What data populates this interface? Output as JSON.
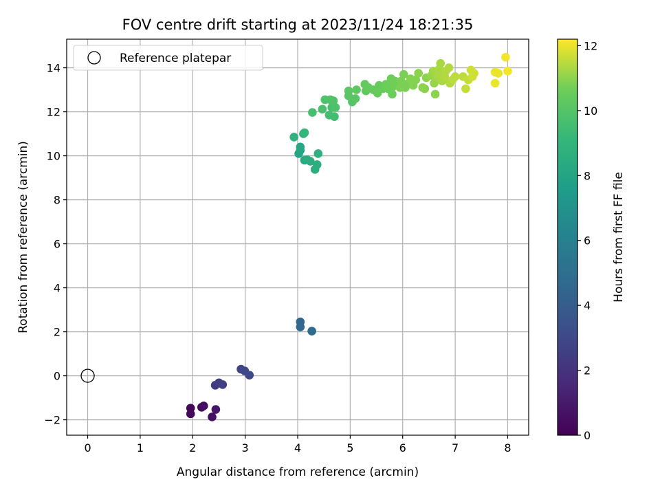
{
  "chart_data": {
    "type": "scatter",
    "title": "FOV centre drift starting at 2023/11/24 18:21:35",
    "xlabel": "Angular distance from reference (arcmin)",
    "ylabel": "Rotation from reference (arcmin)",
    "colorbar_label": "Hours from first FF file",
    "xlim": [
      -0.4,
      8.4
    ],
    "ylim": [
      -2.7,
      15.3
    ],
    "xticks": [
      0,
      1,
      2,
      3,
      4,
      5,
      6,
      7,
      8
    ],
    "yticks": [
      -2,
      0,
      2,
      4,
      6,
      8,
      10,
      12,
      14
    ],
    "colorbar_range": [
      0,
      12.2
    ],
    "colorbar_ticks": [
      0,
      2,
      4,
      6,
      8,
      10,
      12
    ],
    "colormap": "viridis",
    "grid": true,
    "legend": {
      "placement": "top-left",
      "entries": [
        {
          "label": "Reference platepar",
          "marker": "open-circle"
        }
      ]
    },
    "reference": {
      "x": 0,
      "y": 0
    },
    "points": [
      {
        "x": 1.96,
        "y": -1.47,
        "c": 0.2
      },
      {
        "x": 1.96,
        "y": -1.73,
        "c": 0.3
      },
      {
        "x": 2.17,
        "y": -1.43,
        "c": 0.4
      },
      {
        "x": 2.21,
        "y": -1.37,
        "c": 0.5
      },
      {
        "x": 2.37,
        "y": -1.87,
        "c": 0.6
      },
      {
        "x": 2.44,
        "y": -1.53,
        "c": 0.8
      },
      {
        "x": 2.43,
        "y": -0.43,
        "c": 2.3
      },
      {
        "x": 2.5,
        "y": -0.32,
        "c": 2.4
      },
      {
        "x": 2.57,
        "y": -0.4,
        "c": 2.5
      },
      {
        "x": 2.92,
        "y": 0.3,
        "c": 2.8
      },
      {
        "x": 2.99,
        "y": 0.22,
        "c": 2.9
      },
      {
        "x": 3.08,
        "y": 0.03,
        "c": 3.0
      },
      {
        "x": 4.05,
        "y": 2.45,
        "c": 4.6
      },
      {
        "x": 4.05,
        "y": 2.22,
        "c": 4.7
      },
      {
        "x": 4.27,
        "y": 2.03,
        "c": 4.8
      },
      {
        "x": 3.93,
        "y": 10.85,
        "c": 8.8
      },
      {
        "x": 4.02,
        "y": 10.1,
        "c": 8.0
      },
      {
        "x": 4.05,
        "y": 10.25,
        "c": 8.1
      },
      {
        "x": 4.05,
        "y": 10.4,
        "c": 8.2
      },
      {
        "x": 4.11,
        "y": 11.0,
        "c": 8.9
      },
      {
        "x": 4.13,
        "y": 11.05,
        "c": 9.0
      },
      {
        "x": 4.13,
        "y": 9.8,
        "c": 8.3
      },
      {
        "x": 4.18,
        "y": 9.82,
        "c": 8.4
      },
      {
        "x": 4.24,
        "y": 9.75,
        "c": 8.5
      },
      {
        "x": 4.33,
        "y": 9.38,
        "c": 8.6
      },
      {
        "x": 4.37,
        "y": 9.6,
        "c": 8.6
      },
      {
        "x": 4.39,
        "y": 10.1,
        "c": 8.7
      },
      {
        "x": 4.28,
        "y": 11.97,
        "c": 9.6
      },
      {
        "x": 4.47,
        "y": 12.12,
        "c": 9.7
      },
      {
        "x": 4.52,
        "y": 12.55,
        "c": 9.8
      },
      {
        "x": 4.6,
        "y": 11.85,
        "c": 9.6
      },
      {
        "x": 4.62,
        "y": 12.55,
        "c": 9.9
      },
      {
        "x": 4.65,
        "y": 12.2,
        "c": 9.7
      },
      {
        "x": 4.68,
        "y": 12.5,
        "c": 9.9
      },
      {
        "x": 4.7,
        "y": 11.78,
        "c": 9.5
      },
      {
        "x": 4.72,
        "y": 12.2,
        "c": 9.8
      },
      {
        "x": 4.97,
        "y": 12.95,
        "c": 10.2
      },
      {
        "x": 4.97,
        "y": 12.72,
        "c": 10.1
      },
      {
        "x": 5.04,
        "y": 12.45,
        "c": 10.0
      },
      {
        "x": 5.1,
        "y": 12.6,
        "c": 10.1
      },
      {
        "x": 5.12,
        "y": 13.0,
        "c": 10.3
      },
      {
        "x": 5.28,
        "y": 13.25,
        "c": 10.4
      },
      {
        "x": 5.3,
        "y": 12.95,
        "c": 10.3
      },
      {
        "x": 5.35,
        "y": 13.1,
        "c": 10.4
      },
      {
        "x": 5.44,
        "y": 13.0,
        "c": 10.4
      },
      {
        "x": 5.52,
        "y": 12.85,
        "c": 10.5
      },
      {
        "x": 5.55,
        "y": 13.2,
        "c": 10.5
      },
      {
        "x": 5.62,
        "y": 13.05,
        "c": 10.5
      },
      {
        "x": 5.68,
        "y": 13.25,
        "c": 10.6
      },
      {
        "x": 5.72,
        "y": 13.05,
        "c": 10.6
      },
      {
        "x": 5.76,
        "y": 13.3,
        "c": 10.6
      },
      {
        "x": 5.78,
        "y": 13.5,
        "c": 10.6
      },
      {
        "x": 5.8,
        "y": 12.8,
        "c": 10.6
      },
      {
        "x": 5.82,
        "y": 13.15,
        "c": 10.7
      },
      {
        "x": 5.85,
        "y": 13.4,
        "c": 10.7
      },
      {
        "x": 5.9,
        "y": 13.2,
        "c": 10.7
      },
      {
        "x": 5.95,
        "y": 13.1,
        "c": 10.8
      },
      {
        "x": 5.97,
        "y": 13.4,
        "c": 10.8
      },
      {
        "x": 6.02,
        "y": 13.7,
        "c": 10.8
      },
      {
        "x": 6.05,
        "y": 13.1,
        "c": 10.8
      },
      {
        "x": 6.08,
        "y": 13.25,
        "c": 10.8
      },
      {
        "x": 6.15,
        "y": 13.5,
        "c": 10.9
      },
      {
        "x": 6.2,
        "y": 13.2,
        "c": 10.9
      },
      {
        "x": 6.25,
        "y": 13.45,
        "c": 10.9
      },
      {
        "x": 6.3,
        "y": 13.75,
        "c": 11.0
      },
      {
        "x": 6.38,
        "y": 13.1,
        "c": 11.0
      },
      {
        "x": 6.42,
        "y": 13.05,
        "c": 11.0
      },
      {
        "x": 6.45,
        "y": 13.55,
        "c": 11.0
      },
      {
        "x": 6.55,
        "y": 13.65,
        "c": 11.1
      },
      {
        "x": 6.58,
        "y": 13.85,
        "c": 11.2
      },
      {
        "x": 6.6,
        "y": 13.3,
        "c": 11.1
      },
      {
        "x": 6.62,
        "y": 12.8,
        "c": 11.0
      },
      {
        "x": 6.65,
        "y": 13.55,
        "c": 11.2
      },
      {
        "x": 6.68,
        "y": 13.7,
        "c": 11.3
      },
      {
        "x": 6.7,
        "y": 13.95,
        "c": 11.3
      },
      {
        "x": 6.72,
        "y": 14.2,
        "c": 11.3
      },
      {
        "x": 6.75,
        "y": 13.4,
        "c": 11.3
      },
      {
        "x": 6.8,
        "y": 13.6,
        "c": 11.4
      },
      {
        "x": 6.82,
        "y": 13.85,
        "c": 11.4
      },
      {
        "x": 6.88,
        "y": 14.0,
        "c": 11.4
      },
      {
        "x": 6.9,
        "y": 13.3,
        "c": 11.4
      },
      {
        "x": 6.95,
        "y": 13.45,
        "c": 11.5
      },
      {
        "x": 7.0,
        "y": 13.6,
        "c": 11.5
      },
      {
        "x": 7.15,
        "y": 13.6,
        "c": 11.5
      },
      {
        "x": 7.2,
        "y": 13.05,
        "c": 11.6
      },
      {
        "x": 7.25,
        "y": 13.45,
        "c": 11.6
      },
      {
        "x": 7.3,
        "y": 13.9,
        "c": 11.7
      },
      {
        "x": 7.33,
        "y": 13.6,
        "c": 11.7
      },
      {
        "x": 7.36,
        "y": 13.75,
        "c": 11.7
      },
      {
        "x": 7.76,
        "y": 13.8,
        "c": 12.0
      },
      {
        "x": 7.76,
        "y": 13.3,
        "c": 12.0
      },
      {
        "x": 7.82,
        "y": 13.75,
        "c": 12.0
      },
      {
        "x": 7.96,
        "y": 14.48,
        "c": 12.1
      },
      {
        "x": 8.0,
        "y": 13.85,
        "c": 12.1
      }
    ]
  }
}
